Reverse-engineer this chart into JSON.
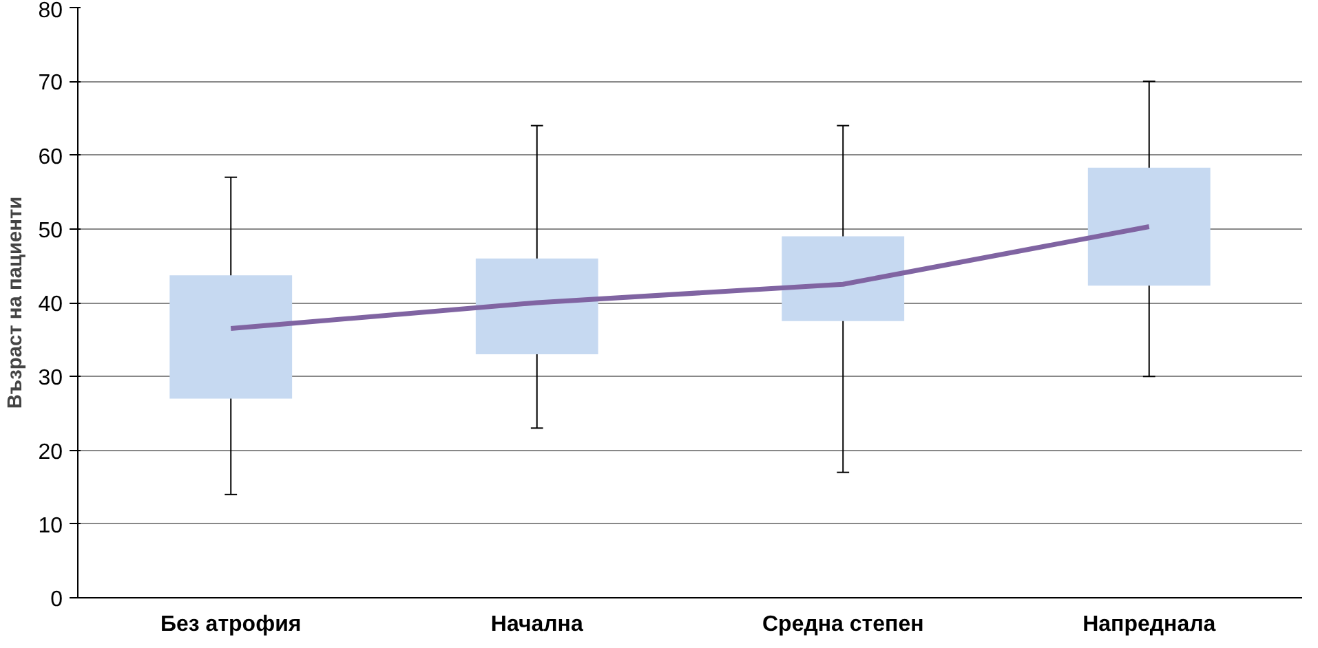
{
  "chart_data": {
    "type": "box",
    "ylabel": "Възраст на пациенти",
    "categories": [
      "Без атрофия",
      "Начална",
      "Средна степен",
      "Напреднала"
    ],
    "ylim": [
      0,
      80
    ],
    "yticks": [
      0,
      10,
      20,
      30,
      40,
      50,
      60,
      70,
      80
    ],
    "grid": "y",
    "series": [
      {
        "color": "#c6d9f1",
        "boxes": [
          {
            "low": 14,
            "q1": 27,
            "q3": 43.7,
            "high": 57
          },
          {
            "low": 23,
            "q1": 33,
            "q3": 46,
            "high": 64
          },
          {
            "low": 17,
            "q1": 37.5,
            "q3": 49,
            "high": 64
          },
          {
            "low": 30,
            "q1": 42.3,
            "q3": 58.3,
            "high": 70
          }
        ]
      },
      {
        "type": "line",
        "color": "#8064a2",
        "values": [
          36.5,
          40,
          42.5,
          50.3
        ]
      }
    ]
  }
}
